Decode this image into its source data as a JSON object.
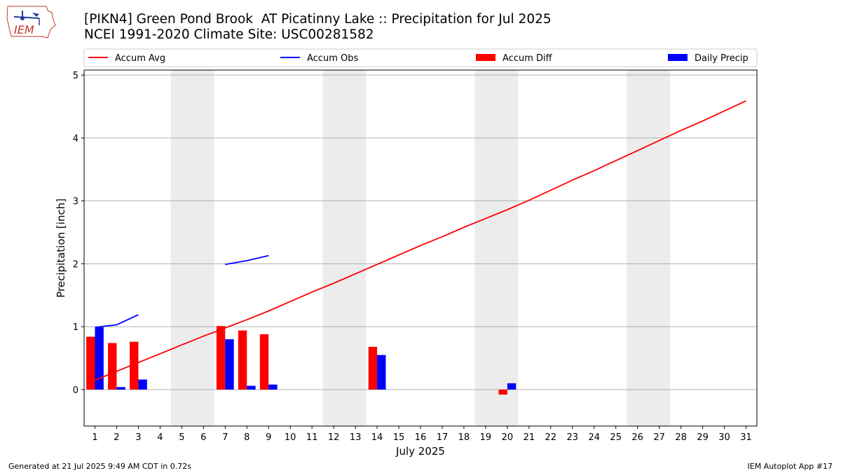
{
  "header": {
    "title_line1": "[PIKN4] Green Pond Brook  AT Picatinny Lake :: Precipitation for Jul 2025",
    "title_line2": "NCEI 1991-2020 Climate Site: USC00281582",
    "logo_text": "IEM"
  },
  "footer": {
    "generated": "Generated at 21 Jul 2025 9:49 AM CDT in 0.72s",
    "app": "IEM Autoplot App #17"
  },
  "colors": {
    "accum_avg": "#ff0000",
    "accum_obs": "#0000ff",
    "accum_diff": "#ff0000",
    "daily_precip": "#0000ff",
    "weekend_band": "#ececec",
    "grid": "#b0b0b0"
  },
  "chart_data": {
    "type": "bar",
    "xlabel": "July 2025",
    "ylabel": "Precipitation [inch]",
    "xlim": [
      0.5,
      31.5
    ],
    "ylim": [
      -0.58,
      5.08
    ],
    "y_ticks": [
      0,
      1,
      2,
      3,
      4,
      5
    ],
    "x_ticks": [
      1,
      2,
      3,
      4,
      5,
      6,
      7,
      8,
      9,
      10,
      11,
      12,
      13,
      14,
      15,
      16,
      17,
      18,
      19,
      20,
      21,
      22,
      23,
      24,
      25,
      26,
      27,
      28,
      29,
      30,
      31
    ],
    "grid": "horizontal",
    "legend_position": "top",
    "weekend_bands": [
      [
        4.5,
        6.5
      ],
      [
        11.5,
        13.5
      ],
      [
        18.5,
        20.5
      ],
      [
        25.5,
        27.5
      ]
    ],
    "legend": [
      "Accum Avg",
      "Accum Obs",
      "Accum Diff",
      "Daily Precip"
    ],
    "lines": [
      {
        "name": "Accum Avg",
        "x": [
          1,
          2,
          3,
          4,
          5,
          6,
          7,
          8,
          9,
          10,
          11,
          12,
          13,
          14,
          15,
          16,
          17,
          18,
          19,
          20,
          21,
          22,
          23,
          24,
          25,
          26,
          27,
          28,
          29,
          30,
          31
        ],
        "y": [
          0.15,
          0.29,
          0.43,
          0.57,
          0.71,
          0.85,
          0.98,
          1.11,
          1.25,
          1.4,
          1.55,
          1.69,
          1.84,
          1.99,
          2.14,
          2.29,
          2.43,
          2.58,
          2.72,
          2.86,
          3.01,
          3.17,
          3.33,
          3.48,
          3.64,
          3.8,
          3.96,
          4.12,
          4.27,
          4.43,
          4.59
        ]
      },
      {
        "name": "Accum Obs",
        "x": [
          1,
          2,
          3
        ],
        "y": [
          0.99,
          1.03,
          1.19
        ]
      },
      {
        "name": "Accum Obs",
        "x": [
          7,
          8,
          9
        ],
        "y": [
          1.99,
          2.05,
          2.13
        ]
      }
    ],
    "bars": [
      {
        "name": "Accum Diff",
        "x": [
          1,
          2,
          3,
          7,
          8,
          9,
          14,
          20
        ],
        "values": [
          0.84,
          0.74,
          0.76,
          1.01,
          0.94,
          0.88,
          0.68,
          -0.08
        ]
      },
      {
        "name": "Daily Precip",
        "x": [
          1,
          2,
          3,
          7,
          8,
          9,
          14,
          20
        ],
        "values": [
          0.99,
          0.04,
          0.16,
          0.8,
          0.06,
          0.08,
          0.55,
          0.1
        ]
      }
    ]
  }
}
